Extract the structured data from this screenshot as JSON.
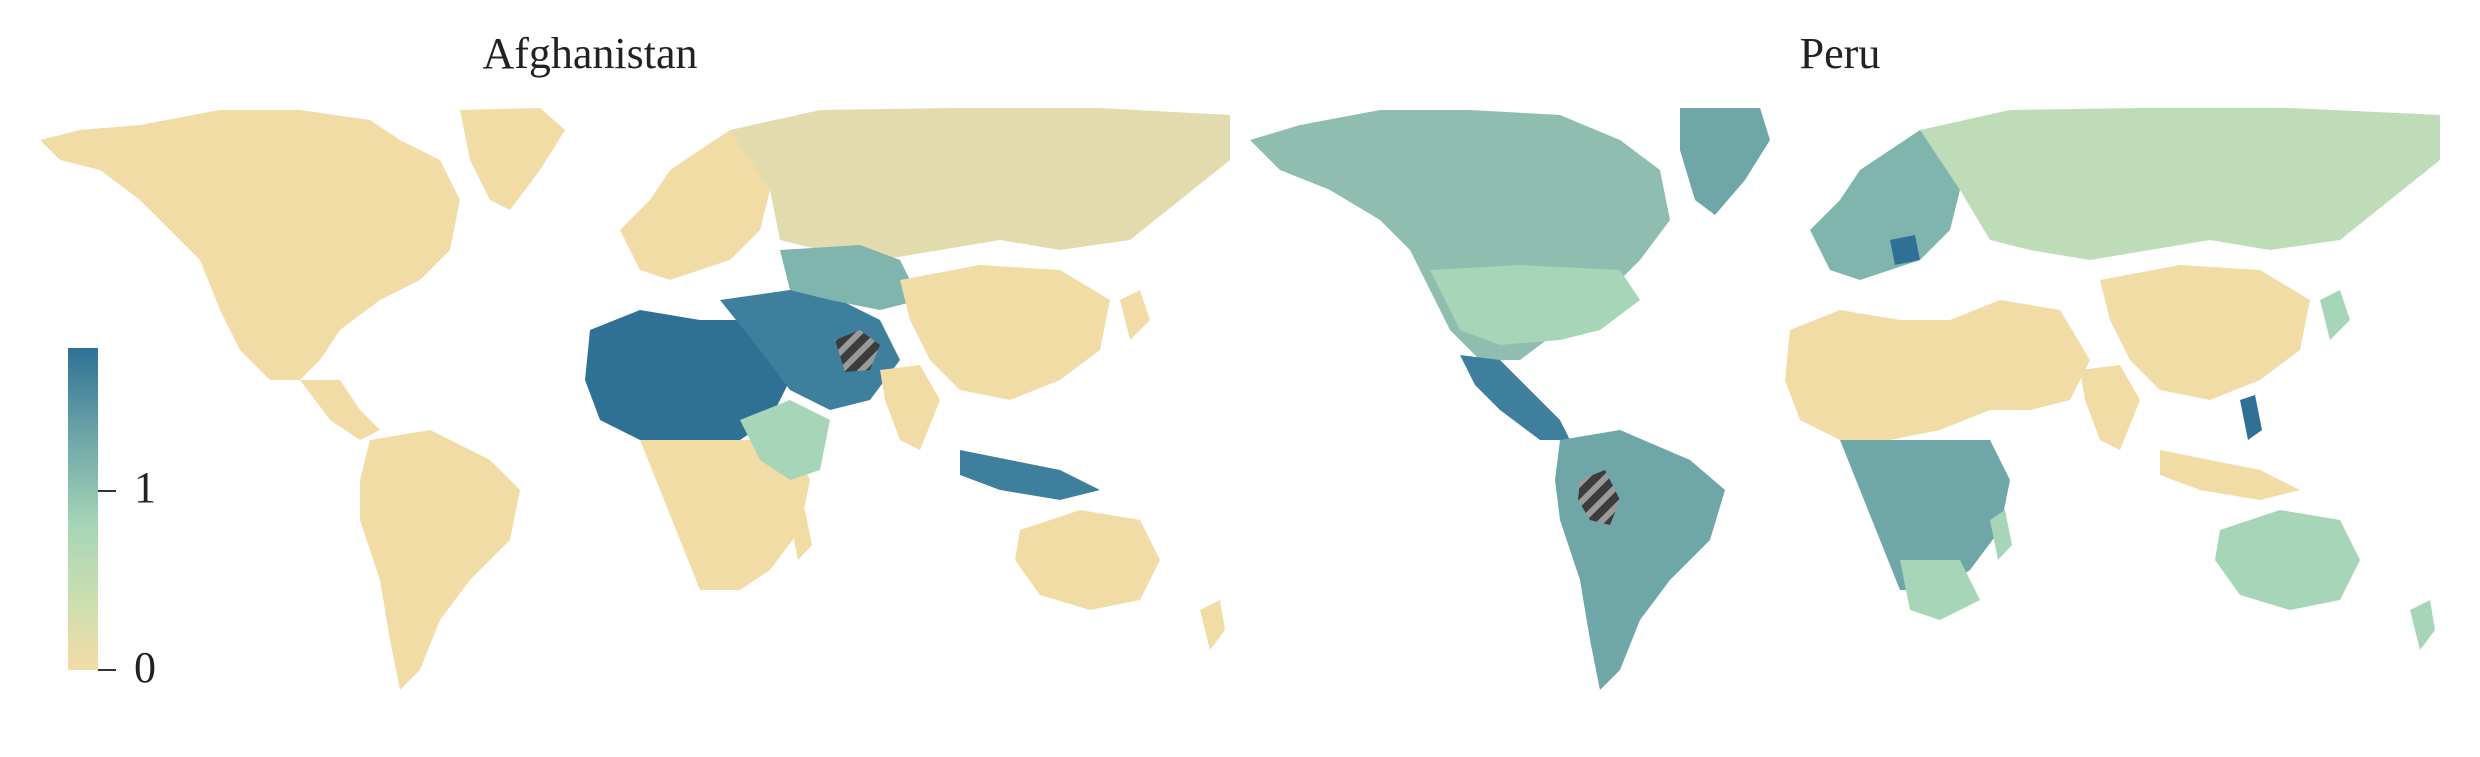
{
  "panels": [
    {
      "title": "Afghanistan",
      "hatched_country": "Afghanistan"
    },
    {
      "title": "Peru",
      "hatched_country": "Peru"
    }
  ],
  "colorbar": {
    "tick_labels": [
      "0",
      "1"
    ],
    "colors": [
      "#f2dca6",
      "#a6d5b7",
      "#2f7195"
    ]
  },
  "colors": {
    "low": "#f2dca6",
    "mid": "#a6d5b7",
    "high": "#2f7195",
    "hatch": "#3c3c3c"
  }
}
